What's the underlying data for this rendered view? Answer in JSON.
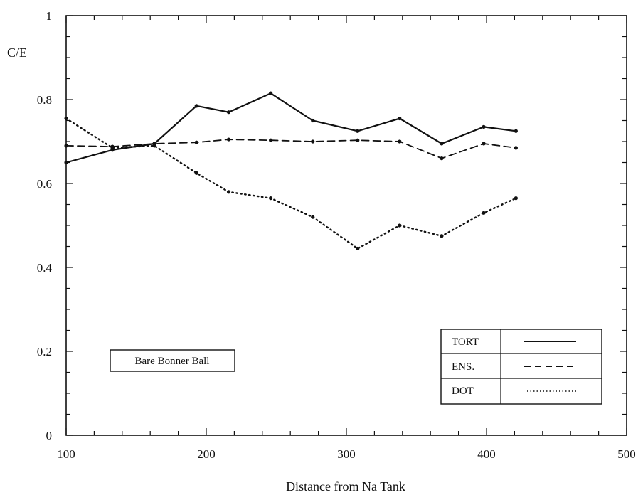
{
  "chart_data": {
    "type": "line",
    "title": "",
    "xlabel": "Distance from Na Tank",
    "ylabel": "C/E",
    "xlim": [
      100,
      500
    ],
    "ylim": [
      0,
      1
    ],
    "x_ticks": [
      "100",
      "200",
      "300",
      "400",
      "500"
    ],
    "y_ticks": [
      "0",
      "0.2",
      "0.4",
      "0.6",
      "0.8",
      "1"
    ],
    "grid": false,
    "legend_position": "bottom-right",
    "annotation": "Bare Bonner Ball",
    "series": [
      {
        "name": "TORT",
        "style": "solid",
        "x": [
          100,
          133,
          163,
          193,
          216,
          246,
          276,
          308,
          338,
          368,
          398,
          421
        ],
        "y": [
          0.65,
          0.68,
          0.695,
          0.785,
          0.77,
          0.815,
          0.75,
          0.725,
          0.755,
          0.695,
          0.735,
          0.725
        ]
      },
      {
        "name": "ENS.",
        "style": "dashed",
        "x": [
          100,
          133,
          163,
          193,
          216,
          246,
          276,
          308,
          338,
          368,
          398,
          421
        ],
        "y": [
          0.69,
          0.688,
          0.695,
          0.698,
          0.705,
          0.703,
          0.7,
          0.703,
          0.7,
          0.66,
          0.695,
          0.685
        ]
      },
      {
        "name": "DOT",
        "style": "dotted",
        "x": [
          100,
          133,
          163,
          193,
          216,
          246,
          276,
          308,
          338,
          368,
          398,
          421
        ],
        "y": [
          0.755,
          0.685,
          0.69,
          0.625,
          0.58,
          0.565,
          0.52,
          0.445,
          0.5,
          0.475,
          0.53,
          0.565
        ]
      }
    ]
  }
}
